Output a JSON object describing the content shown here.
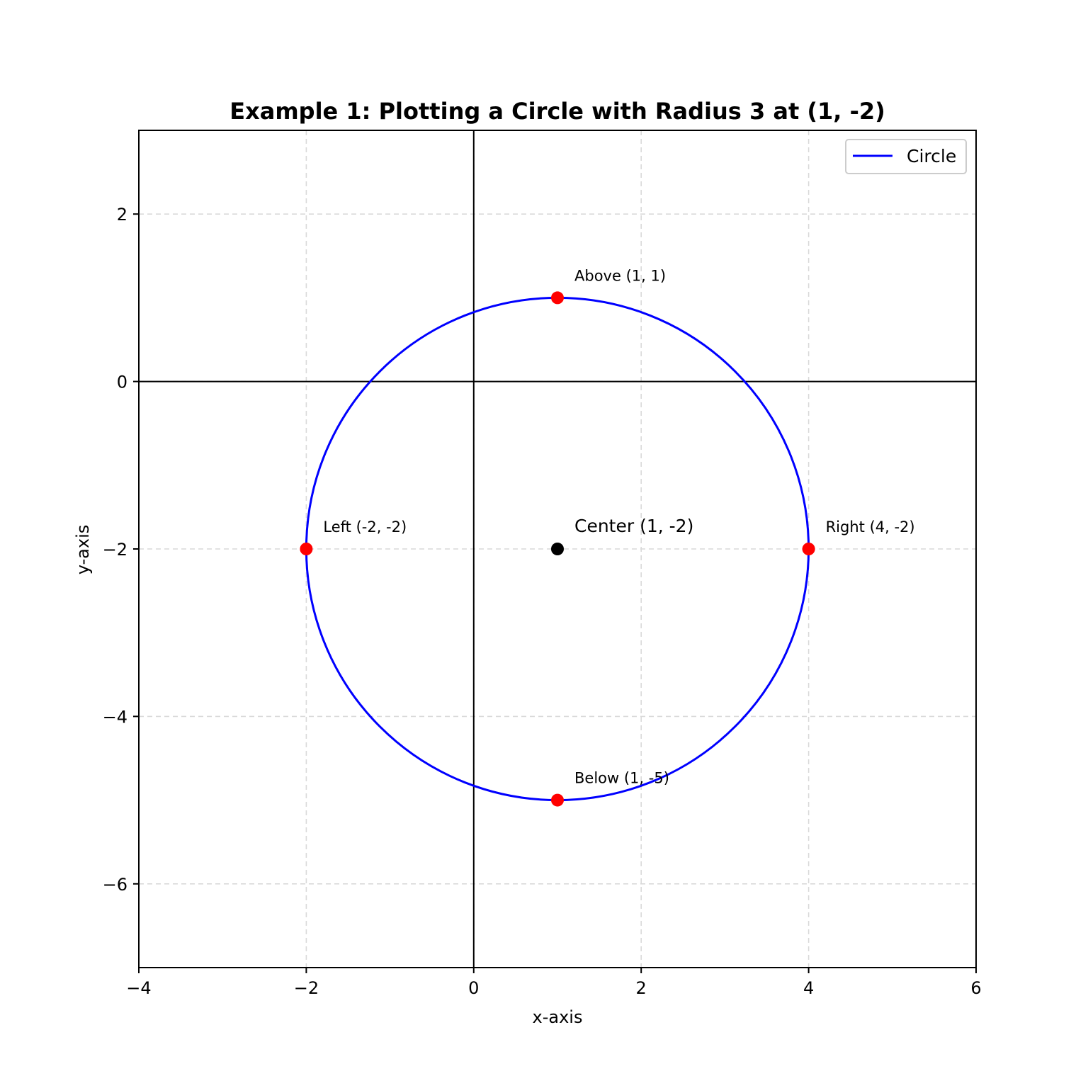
{
  "chart_data": {
    "type": "line",
    "title": "Example 1: Plotting a Circle with Radius 3 at (1, -2)",
    "xlabel": "x-axis",
    "ylabel": "y-axis",
    "xlim": [
      -4,
      6
    ],
    "ylim": [
      -7,
      3
    ],
    "xticks": [
      -4,
      -2,
      0,
      2,
      4,
      6
    ],
    "yticks": [
      -6,
      -4,
      -2,
      0,
      2
    ],
    "xtick_labels": [
      "−4",
      "−2",
      "0",
      "2",
      "4",
      "6"
    ],
    "ytick_labels": [
      "−6",
      "−4",
      "−2",
      "0",
      "2"
    ],
    "grid": true,
    "grid_style": "dashed",
    "legend_position": "upper right",
    "aspect": "equal",
    "axis_lines": {
      "x": 0,
      "y": 0,
      "color": "#000000"
    },
    "series": [
      {
        "name": "Circle",
        "kind": "circle",
        "center": [
          1,
          -2
        ],
        "radius": 3,
        "color": "#0000ff"
      }
    ],
    "points": [
      {
        "name": "center",
        "x": 1,
        "y": -2,
        "color": "#000000",
        "label": "Center (1, -2)"
      },
      {
        "name": "above",
        "x": 1,
        "y": 1,
        "color": "#ff0000",
        "label": "Above (1, 1)"
      },
      {
        "name": "below",
        "x": 1,
        "y": -5,
        "color": "#ff0000",
        "label": "Below (1, -5)"
      },
      {
        "name": "left",
        "x": -2,
        "y": -2,
        "color": "#ff0000",
        "label": "Left (-2, -2)"
      },
      {
        "name": "right",
        "x": 4,
        "y": -2,
        "color": "#ff0000",
        "label": "Right (4, -2)"
      }
    ]
  },
  "legend": {
    "items": [
      {
        "label": "Circle",
        "color": "#0000ff"
      }
    ]
  },
  "colors": {
    "circle": "#0000ff",
    "points": "#ff0000",
    "center": "#000000",
    "grid": "#d9d9d9"
  }
}
